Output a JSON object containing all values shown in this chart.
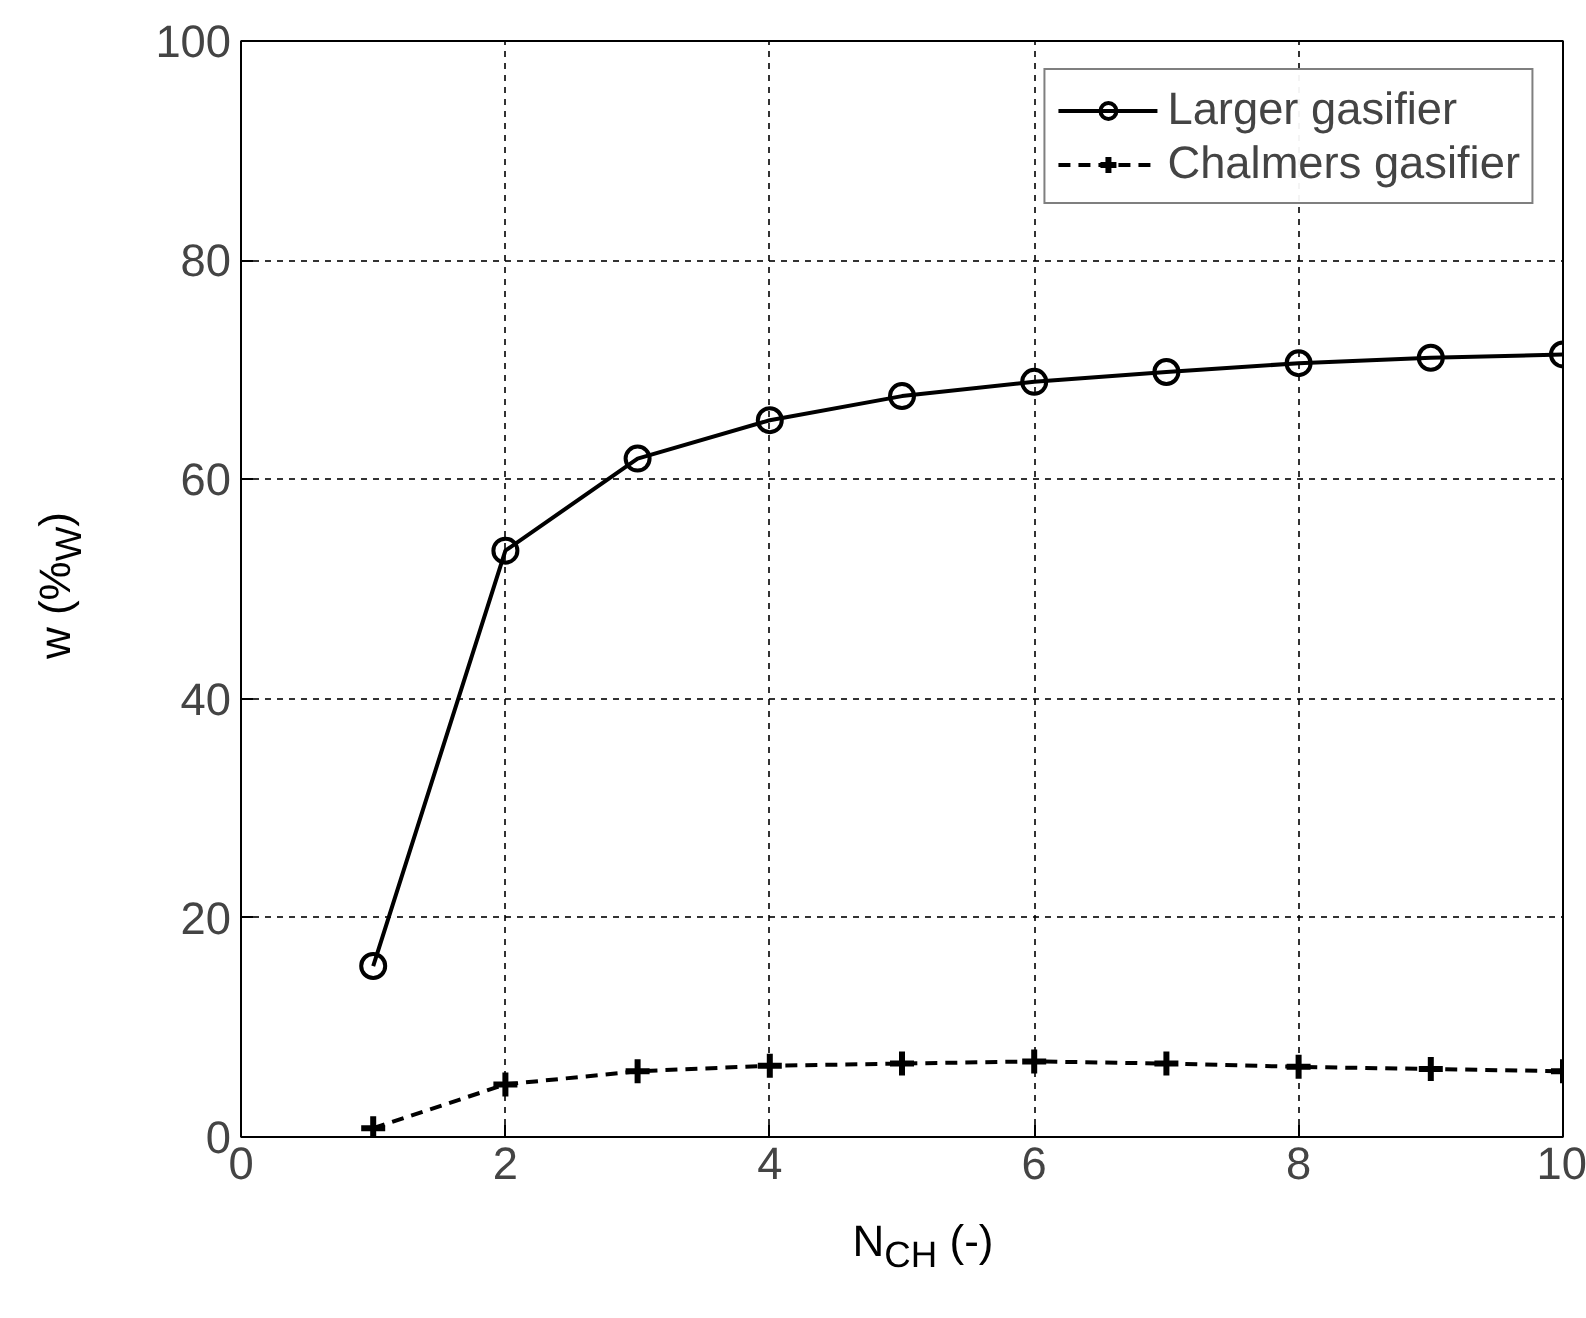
{
  "chart_data": {
    "type": "line",
    "xlabel": "N$_{CH}$ (-)",
    "ylabel": "w (%$_{W}$)",
    "x": [
      1,
      2,
      3,
      4,
      5,
      6,
      7,
      8,
      9,
      10
    ],
    "series": [
      {
        "name": "Larger gasifier",
        "color": "#000000",
        "marker": "circle",
        "line_style": "solid",
        "values": [
          15.6,
          53.5,
          61.9,
          65.4,
          67.6,
          68.9,
          69.8,
          70.6,
          71.1,
          71.4
        ]
      },
      {
        "name": "Chalmers gasifier",
        "color": "#000000",
        "marker": "cross",
        "line_style": "dashed",
        "values": [
          0.8,
          4.8,
          6.0,
          6.5,
          6.7,
          6.9,
          6.7,
          6.4,
          6.2,
          6.0
        ]
      }
    ],
    "xlim": [
      0,
      10
    ],
    "ylim": [
      0,
      100
    ],
    "xticks": [
      0,
      2,
      4,
      6,
      8,
      10
    ],
    "yticks": [
      0,
      20,
      40,
      60,
      80,
      100
    ],
    "grid": true,
    "legend": "top right"
  }
}
